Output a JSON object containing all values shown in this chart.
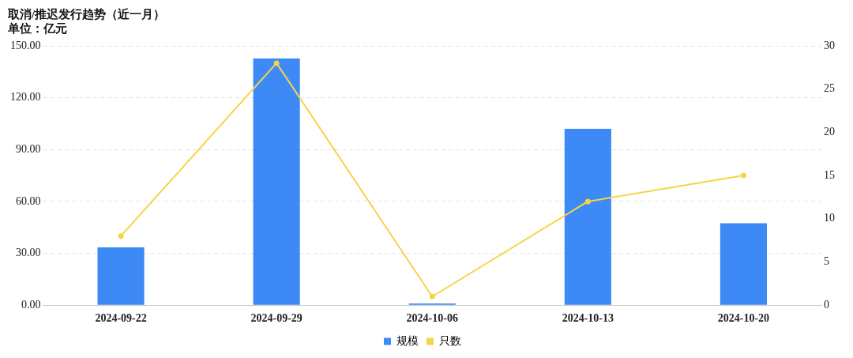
{
  "chart_data": {
    "type": "bar",
    "title": "取消/推迟发行趋势（近一月）",
    "subtitle": "单位：亿元",
    "categories": [
      "2024-09-22",
      "2024-09-29",
      "2024-10-06",
      "2024-10-13",
      "2024-10-20"
    ],
    "series": [
      {
        "name": "规模",
        "color": "#3d8af7",
        "values": [
          33.4,
          142.7,
          1,
          102,
          47.4
        ]
      },
      {
        "name": "只数",
        "type": "line",
        "axis": "y2",
        "color": "#f5d547",
        "values": [
          8,
          28,
          1,
          12,
          15
        ]
      }
    ],
    "ylim": [
      0,
      150
    ],
    "yticks": [
      {
        "value": 0,
        "label": "0.00"
      },
      {
        "value": 30,
        "label": "30.00"
      },
      {
        "value": 60,
        "label": "60.00"
      },
      {
        "value": 90,
        "label": "90.00"
      },
      {
        "value": 120,
        "label": "120.00"
      },
      {
        "value": 150,
        "label": "150.00"
      }
    ],
    "y2lim": [
      0,
      30
    ],
    "y2ticks": [
      0,
      5,
      10,
      15,
      20,
      25,
      30
    ],
    "grid": "y",
    "legend": "bottom",
    "marker": "circle",
    "line_style": "solid"
  }
}
